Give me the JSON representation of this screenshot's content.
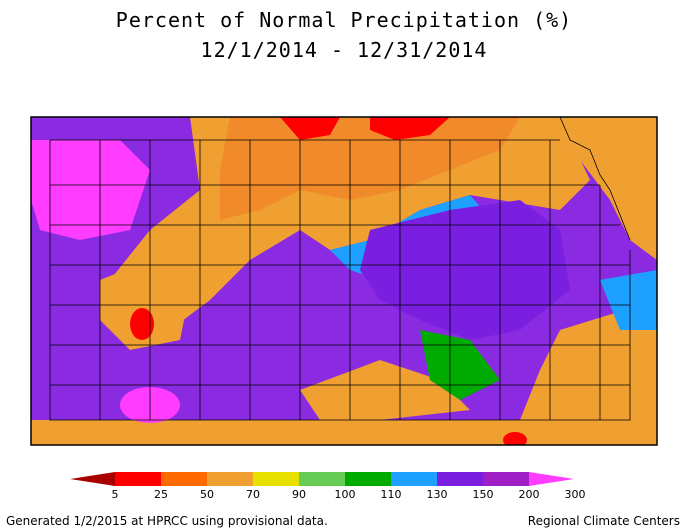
{
  "title": {
    "line1": "Percent of Normal Precipitation (%)",
    "line2": "12/1/2014 - 12/31/2014"
  },
  "legend": {
    "colors": [
      "#a80000",
      "#ff0000",
      "#ff6a00",
      "#f0a030",
      "#e8e000",
      "#66cc55",
      "#00aa00",
      "#1ea0ff",
      "#7a1fe0",
      "#a020c8",
      "#ff3cff"
    ],
    "labels": [
      "5",
      "25",
      "50",
      "70",
      "90",
      "100",
      "110",
      "130",
      "150",
      "200",
      "300"
    ]
  },
  "footer": {
    "left": "Generated 1/2/2015 at HPRCC using provisional data.",
    "right": "Regional Climate Centers"
  }
}
